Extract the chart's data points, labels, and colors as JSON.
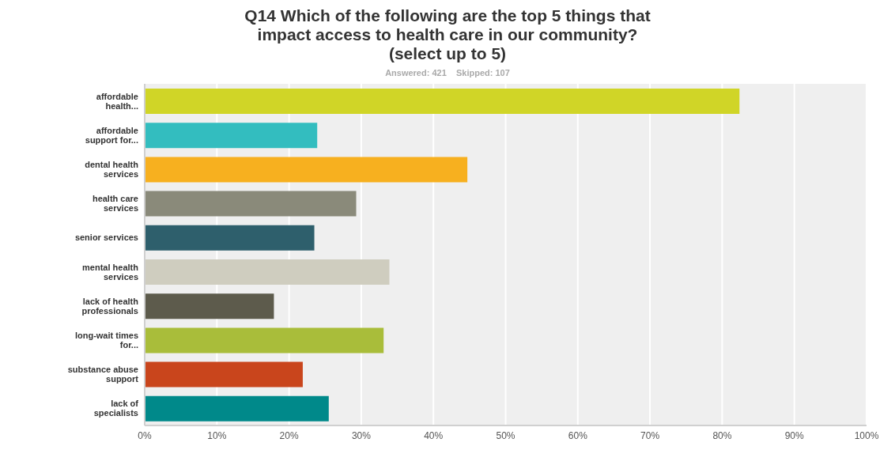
{
  "chart_data": {
    "type": "bar",
    "orientation": "horizontal",
    "title": "Q14 Which of the following are the top 5 things that impact access to health care in our community? (select up to 5)",
    "subtitle": "Answered: 421    Skipped: 107",
    "categories": [
      "affordable health...",
      "affordable support for...",
      "dental health services",
      "health care services",
      "senior services",
      "mental health services",
      "lack of health professionals",
      "long-wait times for...",
      "substance abuse support",
      "lack of specialists"
    ],
    "values": [
      82.4,
      23.9,
      44.7,
      29.3,
      23.5,
      33.9,
      17.9,
      33.1,
      21.9,
      25.5
    ],
    "colors": [
      "#d0d527",
      "#33bdbf",
      "#f7b01f",
      "#8a8a7a",
      "#2e5f6c",
      "#cfcdbf",
      "#5d5b4c",
      "#a9bd3a",
      "#c9451c",
      "#00898a"
    ],
    "xlim": [
      0,
      100
    ],
    "xticks": [
      {
        "value": 0,
        "label": "0%"
      },
      {
        "value": 10,
        "label": "10%"
      },
      {
        "value": 20,
        "label": "20%"
      },
      {
        "value": 30,
        "label": "30%"
      },
      {
        "value": 40,
        "label": "40%"
      },
      {
        "value": 50,
        "label": "50%"
      },
      {
        "value": 60,
        "label": "60%"
      },
      {
        "value": 70,
        "label": "70%"
      },
      {
        "value": 80,
        "label": "80%"
      },
      {
        "value": 90,
        "label": "90%"
      },
      {
        "value": 100,
        "label": "100%"
      }
    ],
    "grid": "x",
    "legend": false
  }
}
